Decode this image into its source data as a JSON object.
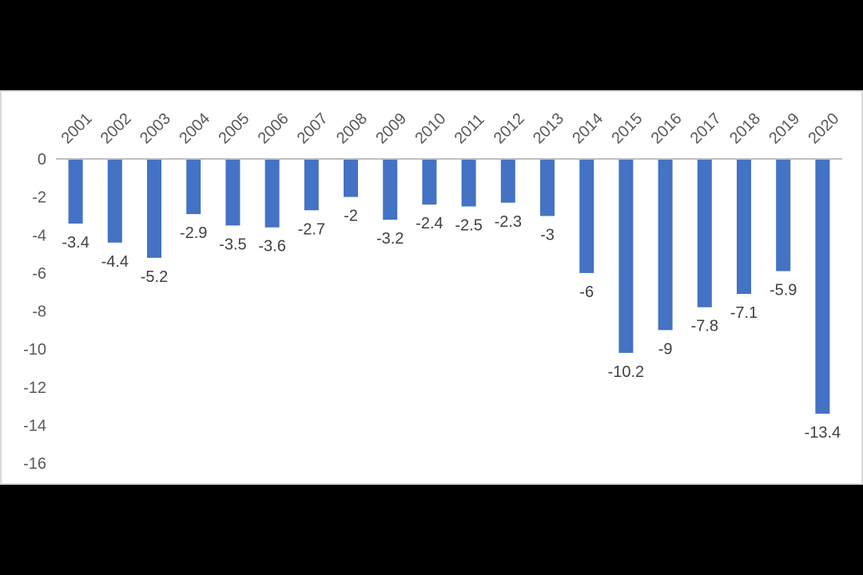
{
  "chart_data": {
    "type": "bar",
    "title": "",
    "xlabel": "",
    "ylabel": "",
    "categories": [
      "2001",
      "2002",
      "2003",
      "2004",
      "2005",
      "2006",
      "2007",
      "2008",
      "2009",
      "2010",
      "2011",
      "2012",
      "2013",
      "2014",
      "2015",
      "2016",
      "2017",
      "2018",
      "2019",
      "2020"
    ],
    "values": [
      -3.4,
      -4.4,
      -5.2,
      -2.9,
      -3.5,
      -3.6,
      -2.7,
      -2,
      -3.2,
      -2.4,
      -2.5,
      -2.3,
      -3,
      -6,
      -10.2,
      -9,
      -7.8,
      -7.1,
      -5.9,
      -13.4
    ],
    "ylim": [
      -16,
      0
    ],
    "yticks": [
      0,
      -2,
      -4,
      -6,
      -8,
      -10,
      -12,
      -14,
      -16
    ],
    "grid": false,
    "legend": "none",
    "colors": {
      "bar": "#4472C4",
      "axis": "#bfbfbf",
      "text": "#595959",
      "background": "#ffffff",
      "frame": "#000000"
    }
  }
}
